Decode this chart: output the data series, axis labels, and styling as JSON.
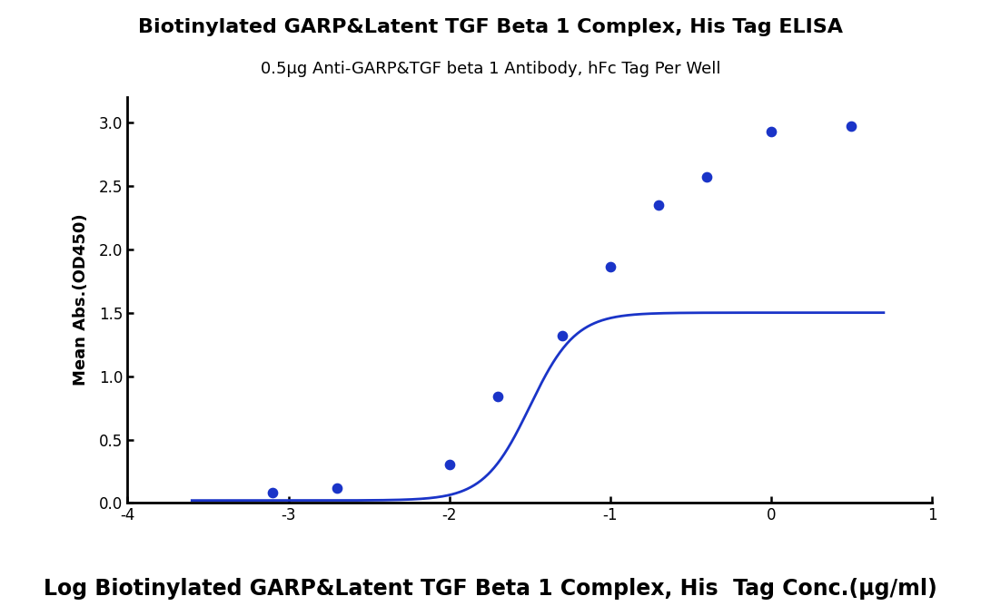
{
  "title": "Biotinylated GARP&Latent TGF Beta 1 Complex, His Tag ELISA",
  "subtitle": "0.5μg Anti-GARP&TGF beta 1 Antibody, hFc Tag Per Well",
  "xlabel": "Log Biotinylated GARP&Latent TGF Beta 1 Complex, His  Tag Conc.(μg/ml)",
  "ylabel": "Mean Abs.(OD450)",
  "title_fontsize": 16,
  "subtitle_fontsize": 13,
  "xlabel_fontsize": 17,
  "ylabel_fontsize": 13,
  "data_x": [
    -3.1,
    -2.7,
    -2.0,
    -1.7,
    -1.3,
    -1.0,
    -0.7,
    -0.4,
    0.0,
    0.5
  ],
  "data_y": [
    0.08,
    0.12,
    0.3,
    0.84,
    1.32,
    1.86,
    2.35,
    2.57,
    2.93,
    2.97
  ],
  "xlim": [
    -4,
    1
  ],
  "ylim": [
    0.0,
    3.2
  ],
  "xticks": [
    -4,
    -3,
    -2,
    -1,
    0,
    1
  ],
  "yticks": [
    0.0,
    0.5,
    1.0,
    1.5,
    2.0,
    2.5,
    3.0
  ],
  "curve_color": "#1a34c8",
  "dot_color": "#1a34c8",
  "dot_size": 55,
  "line_width": 2.0,
  "background_color": "#ffffff",
  "title_fontweight": "bold",
  "xlabel_fontweight": "bold",
  "tick_fontsize": 12
}
